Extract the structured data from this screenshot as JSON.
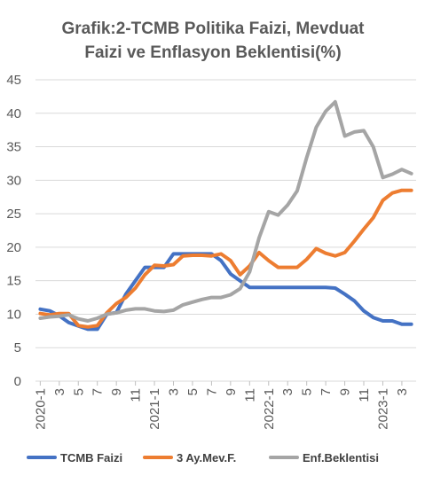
{
  "chart_data": {
    "type": "line",
    "title_lines": [
      "Grafik:2-TCMB Politika Faizi, Mevduat",
      "Faizi ve Enflasyon Beklentisi(%)"
    ],
    "ylim": [
      0,
      45
    ],
    "yticks": [
      0,
      5,
      10,
      15,
      20,
      25,
      30,
      35,
      40,
      45
    ],
    "grid": true,
    "legend_position": "bottom",
    "x_tick_labels": [
      "2020-1",
      "3",
      "5",
      "7",
      "9",
      "11",
      "2021-1",
      "3",
      "5",
      "7",
      "9",
      "11",
      "2022-1",
      "3",
      "5",
      "7",
      "9",
      "11",
      "2023-1",
      "3"
    ],
    "categories": [
      "2020-1",
      "2020-2",
      "2020-3",
      "2020-4",
      "2020-5",
      "2020-6",
      "2020-7",
      "2020-8",
      "2020-9",
      "2020-10",
      "2020-11",
      "2020-12",
      "2021-1",
      "2021-2",
      "2021-3",
      "2021-4",
      "2021-5",
      "2021-6",
      "2021-7",
      "2021-8",
      "2021-9",
      "2021-10",
      "2021-11",
      "2021-12",
      "2022-1",
      "2022-2",
      "2022-3",
      "2022-4",
      "2022-5",
      "2022-6",
      "2022-7",
      "2022-8",
      "2022-9",
      "2022-10",
      "2022-11",
      "2022-12",
      "2023-1",
      "2023-2",
      "2023-3",
      "2023-4"
    ],
    "series": [
      {
        "name": "TCMB Faizi",
        "color": "#4472c4",
        "values": [
          10.75,
          10.5,
          9.75,
          8.75,
          8.25,
          7.75,
          7.75,
          10,
          10.25,
          13,
          15,
          17,
          17,
          17,
          19,
          19,
          19,
          19,
          19,
          18,
          16,
          15,
          14,
          14,
          14,
          14,
          14,
          14,
          14,
          14,
          14,
          13.9,
          13,
          12,
          10.5,
          9.5,
          9,
          9,
          8.5,
          8.5
        ]
      },
      {
        "name": "3 Ay.Mev.F.",
        "color": "#ed7d31",
        "values": [
          10.1,
          9.9,
          10.1,
          10.1,
          8.3,
          8.1,
          8.3,
          10.2,
          11.6,
          12.5,
          13.9,
          15.9,
          17.3,
          17.2,
          17.4,
          18.7,
          18.8,
          18.8,
          18.7,
          19,
          18,
          15.9,
          17.2,
          19.2,
          18,
          17,
          17,
          17,
          18.2,
          19.8,
          19.1,
          18.7,
          19.2,
          20.9,
          22.7,
          24.4,
          27,
          28.1,
          28.5,
          28.5
        ]
      },
      {
        "name": "Enf.Beklentisi",
        "color": "#a5a5a5",
        "values": [
          9.4,
          9.6,
          9.7,
          9.9,
          9.3,
          9,
          9.4,
          10,
          10.2,
          10.6,
          10.8,
          10.8,
          10.5,
          10.4,
          10.6,
          11.4,
          11.8,
          12.2,
          12.5,
          12.5,
          12.9,
          13.8,
          16.3,
          21.4,
          25.3,
          24.8,
          26.3,
          28.4,
          33.4,
          37.9,
          40.3,
          41.7,
          36.6,
          37.2,
          37.4,
          35,
          30.4,
          30.9,
          31.6,
          31
        ]
      }
    ]
  }
}
